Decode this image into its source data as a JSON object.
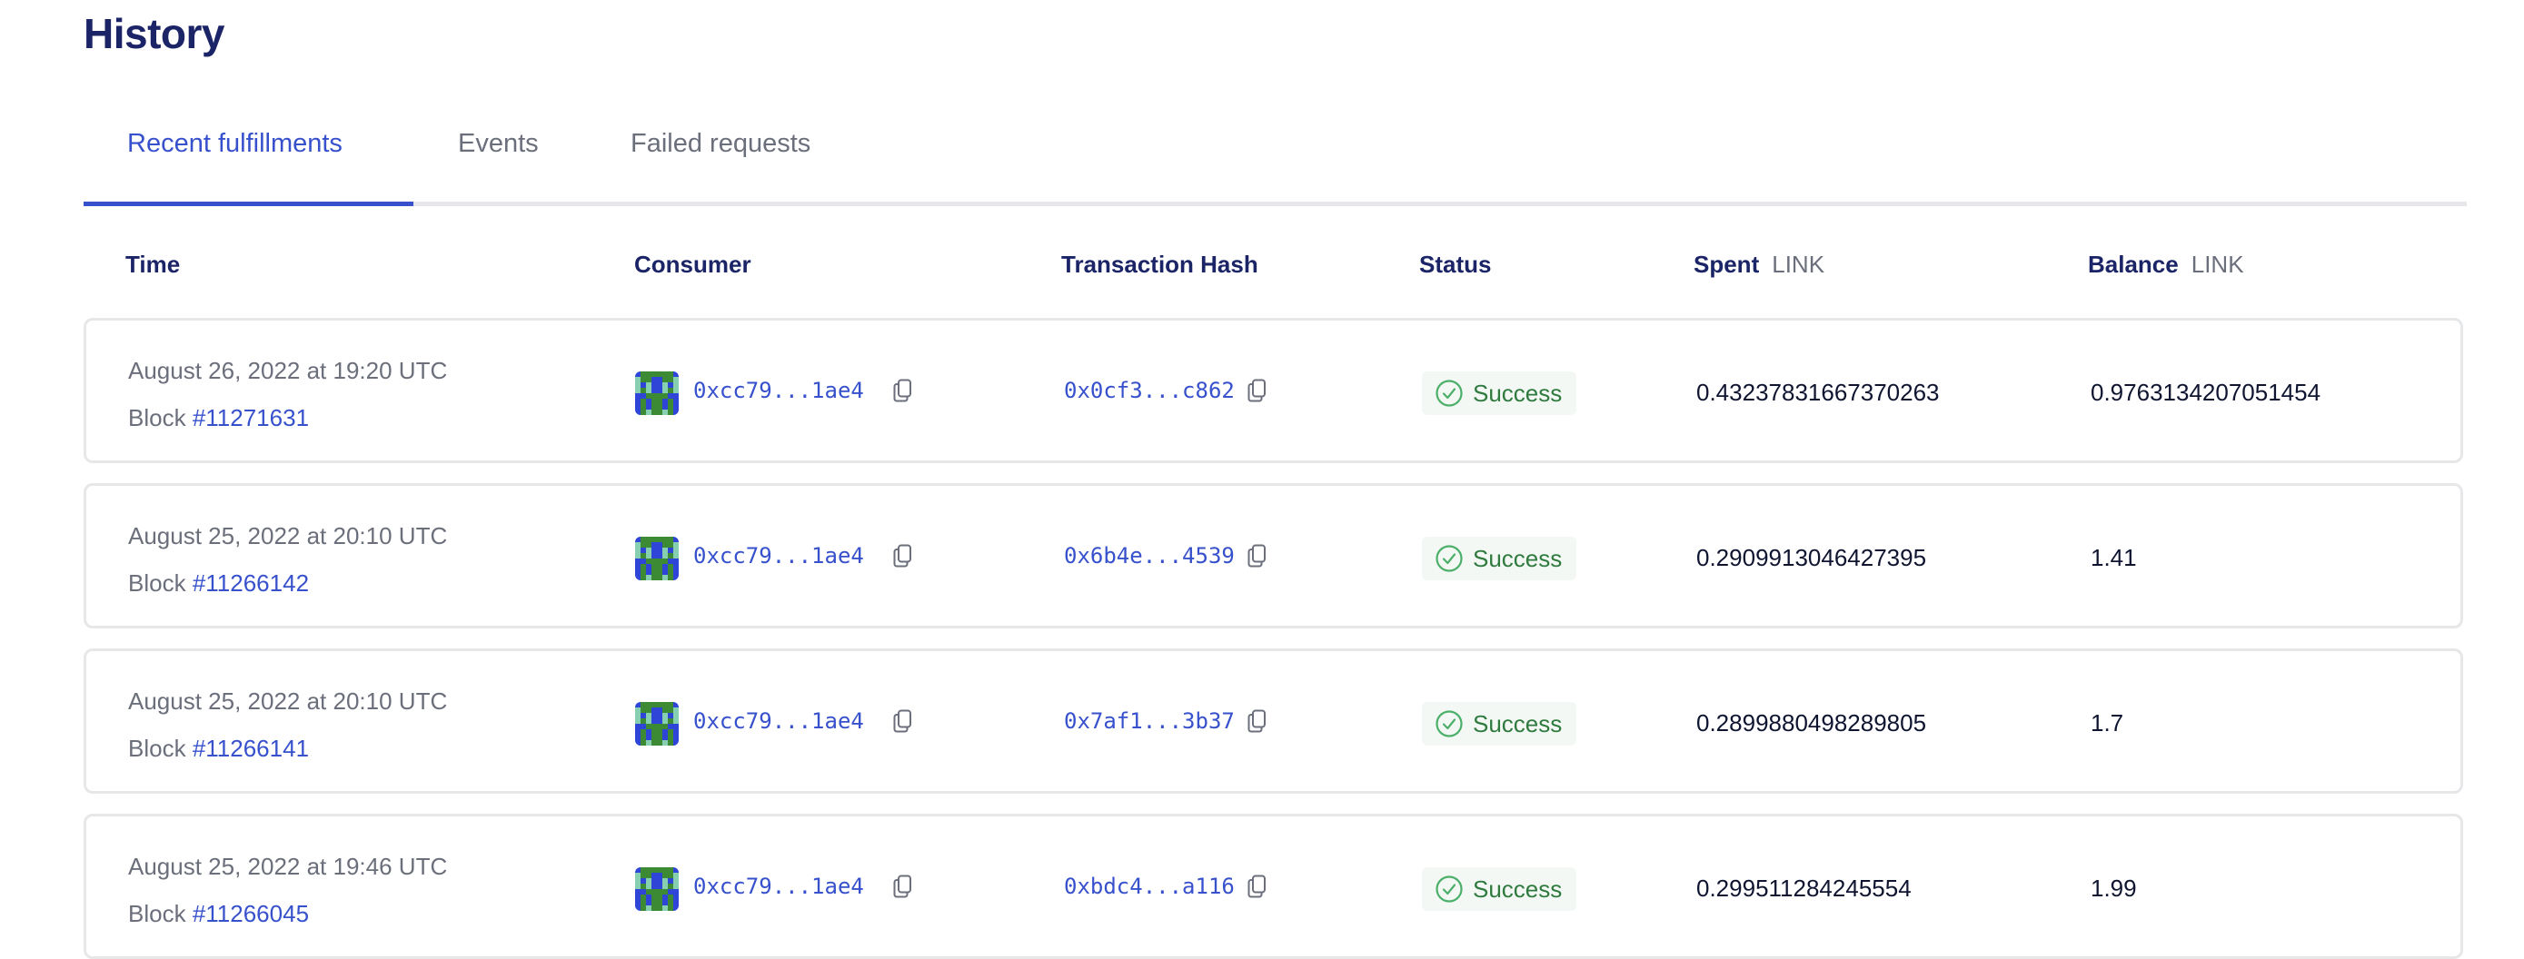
{
  "page": {
    "title": "History"
  },
  "tabs": [
    {
      "label": "Recent fulfillments",
      "active": true
    },
    {
      "label": "Events",
      "active": false
    },
    {
      "label": "Failed requests",
      "active": false
    }
  ],
  "columns": {
    "time": "Time",
    "consumer": "Consumer",
    "hash": "Transaction Hash",
    "status": "Status",
    "spent": "Spent",
    "spent_unit": "LINK",
    "balance": "Balance",
    "balance_unit": "LINK"
  },
  "block_prefix": "Block",
  "rows": [
    {
      "time": "August 26, 2022 at 19:20 UTC",
      "block": "#11271631",
      "consumer": "0xcc79...1ae4",
      "hash": "0x0cf3...c862",
      "status": "Success",
      "spent": "0.43237831667370263",
      "balance": "0.9763134207051454"
    },
    {
      "time": "August 25, 2022 at 20:10 UTC",
      "block": "#11266142",
      "consumer": "0xcc79...1ae4",
      "hash": "0x6b4e...4539",
      "status": "Success",
      "spent": "0.2909913046427395",
      "balance": "1.41"
    },
    {
      "time": "August 25, 2022 at 20:10 UTC",
      "block": "#11266141",
      "consumer": "0xcc79...1ae4",
      "hash": "0x7af1...3b37",
      "status": "Success",
      "spent": "0.2899880498289805",
      "balance": "1.7"
    },
    {
      "time": "August 25, 2022 at 19:46 UTC",
      "block": "#11266045",
      "consumer": "0xcc79...1ae4",
      "hash": "0xbdc4...a116",
      "status": "Success",
      "spent": "0.299511284245554",
      "balance": "1.99"
    }
  ],
  "colors": {
    "accent": "#3751cc",
    "heading": "#1b2466",
    "success": "#2f7a3e",
    "success_bg": "#f3f8f4"
  },
  "icons": {
    "copy": "copy-icon",
    "status": "check-circle-icon",
    "avatar": "identicon"
  }
}
